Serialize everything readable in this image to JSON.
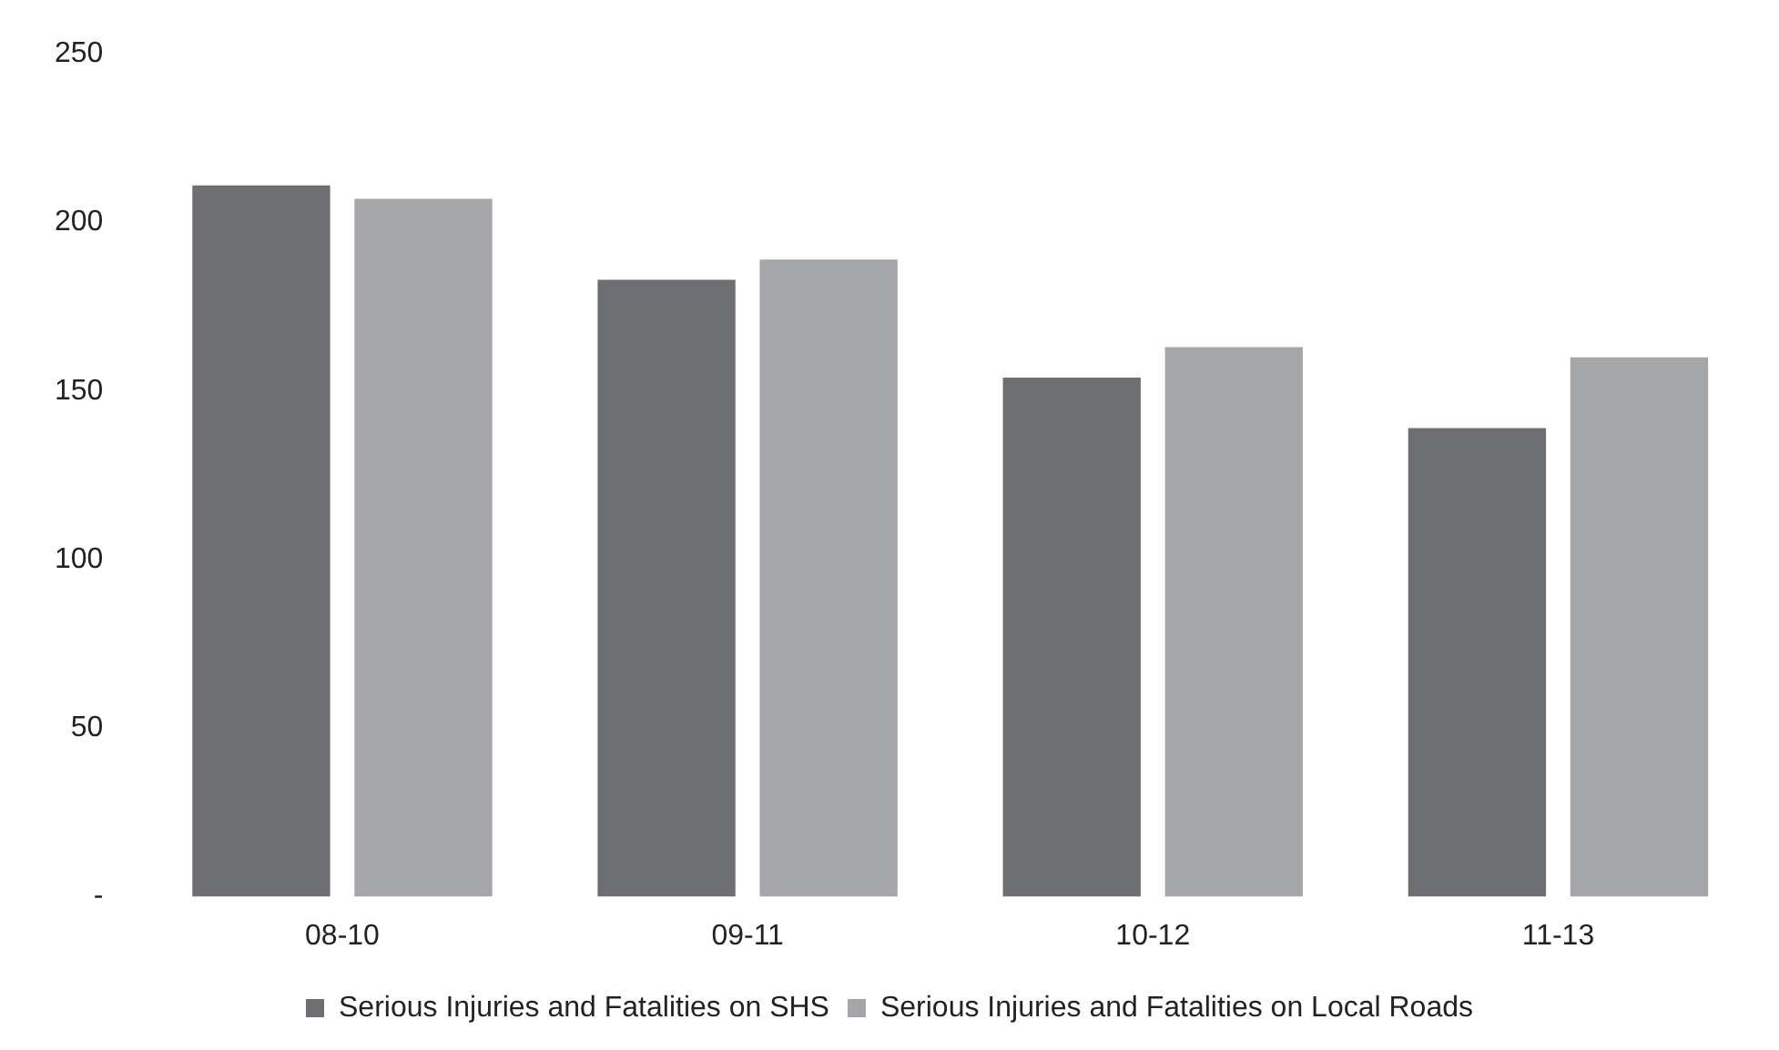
{
  "chart_data": {
    "type": "bar",
    "categories": [
      "08-10",
      "09-11",
      "10-12",
      "11-13"
    ],
    "series": [
      {
        "name": "Serious Injuries and Fatalities on SHS",
        "color": "#6e6f73",
        "values": [
          211,
          183,
          154,
          139
        ]
      },
      {
        "name": "Serious Injuries and Fatalities on Local Roads",
        "color": "#a5a6a9",
        "values": [
          207,
          189,
          163,
          160
        ]
      }
    ],
    "ylim": [
      0,
      250
    ],
    "yticks": [
      {
        "value": 0,
        "label": "-"
      },
      50,
      100,
      150,
      200,
      250
    ],
    "grid": false,
    "legend": "bottom"
  }
}
